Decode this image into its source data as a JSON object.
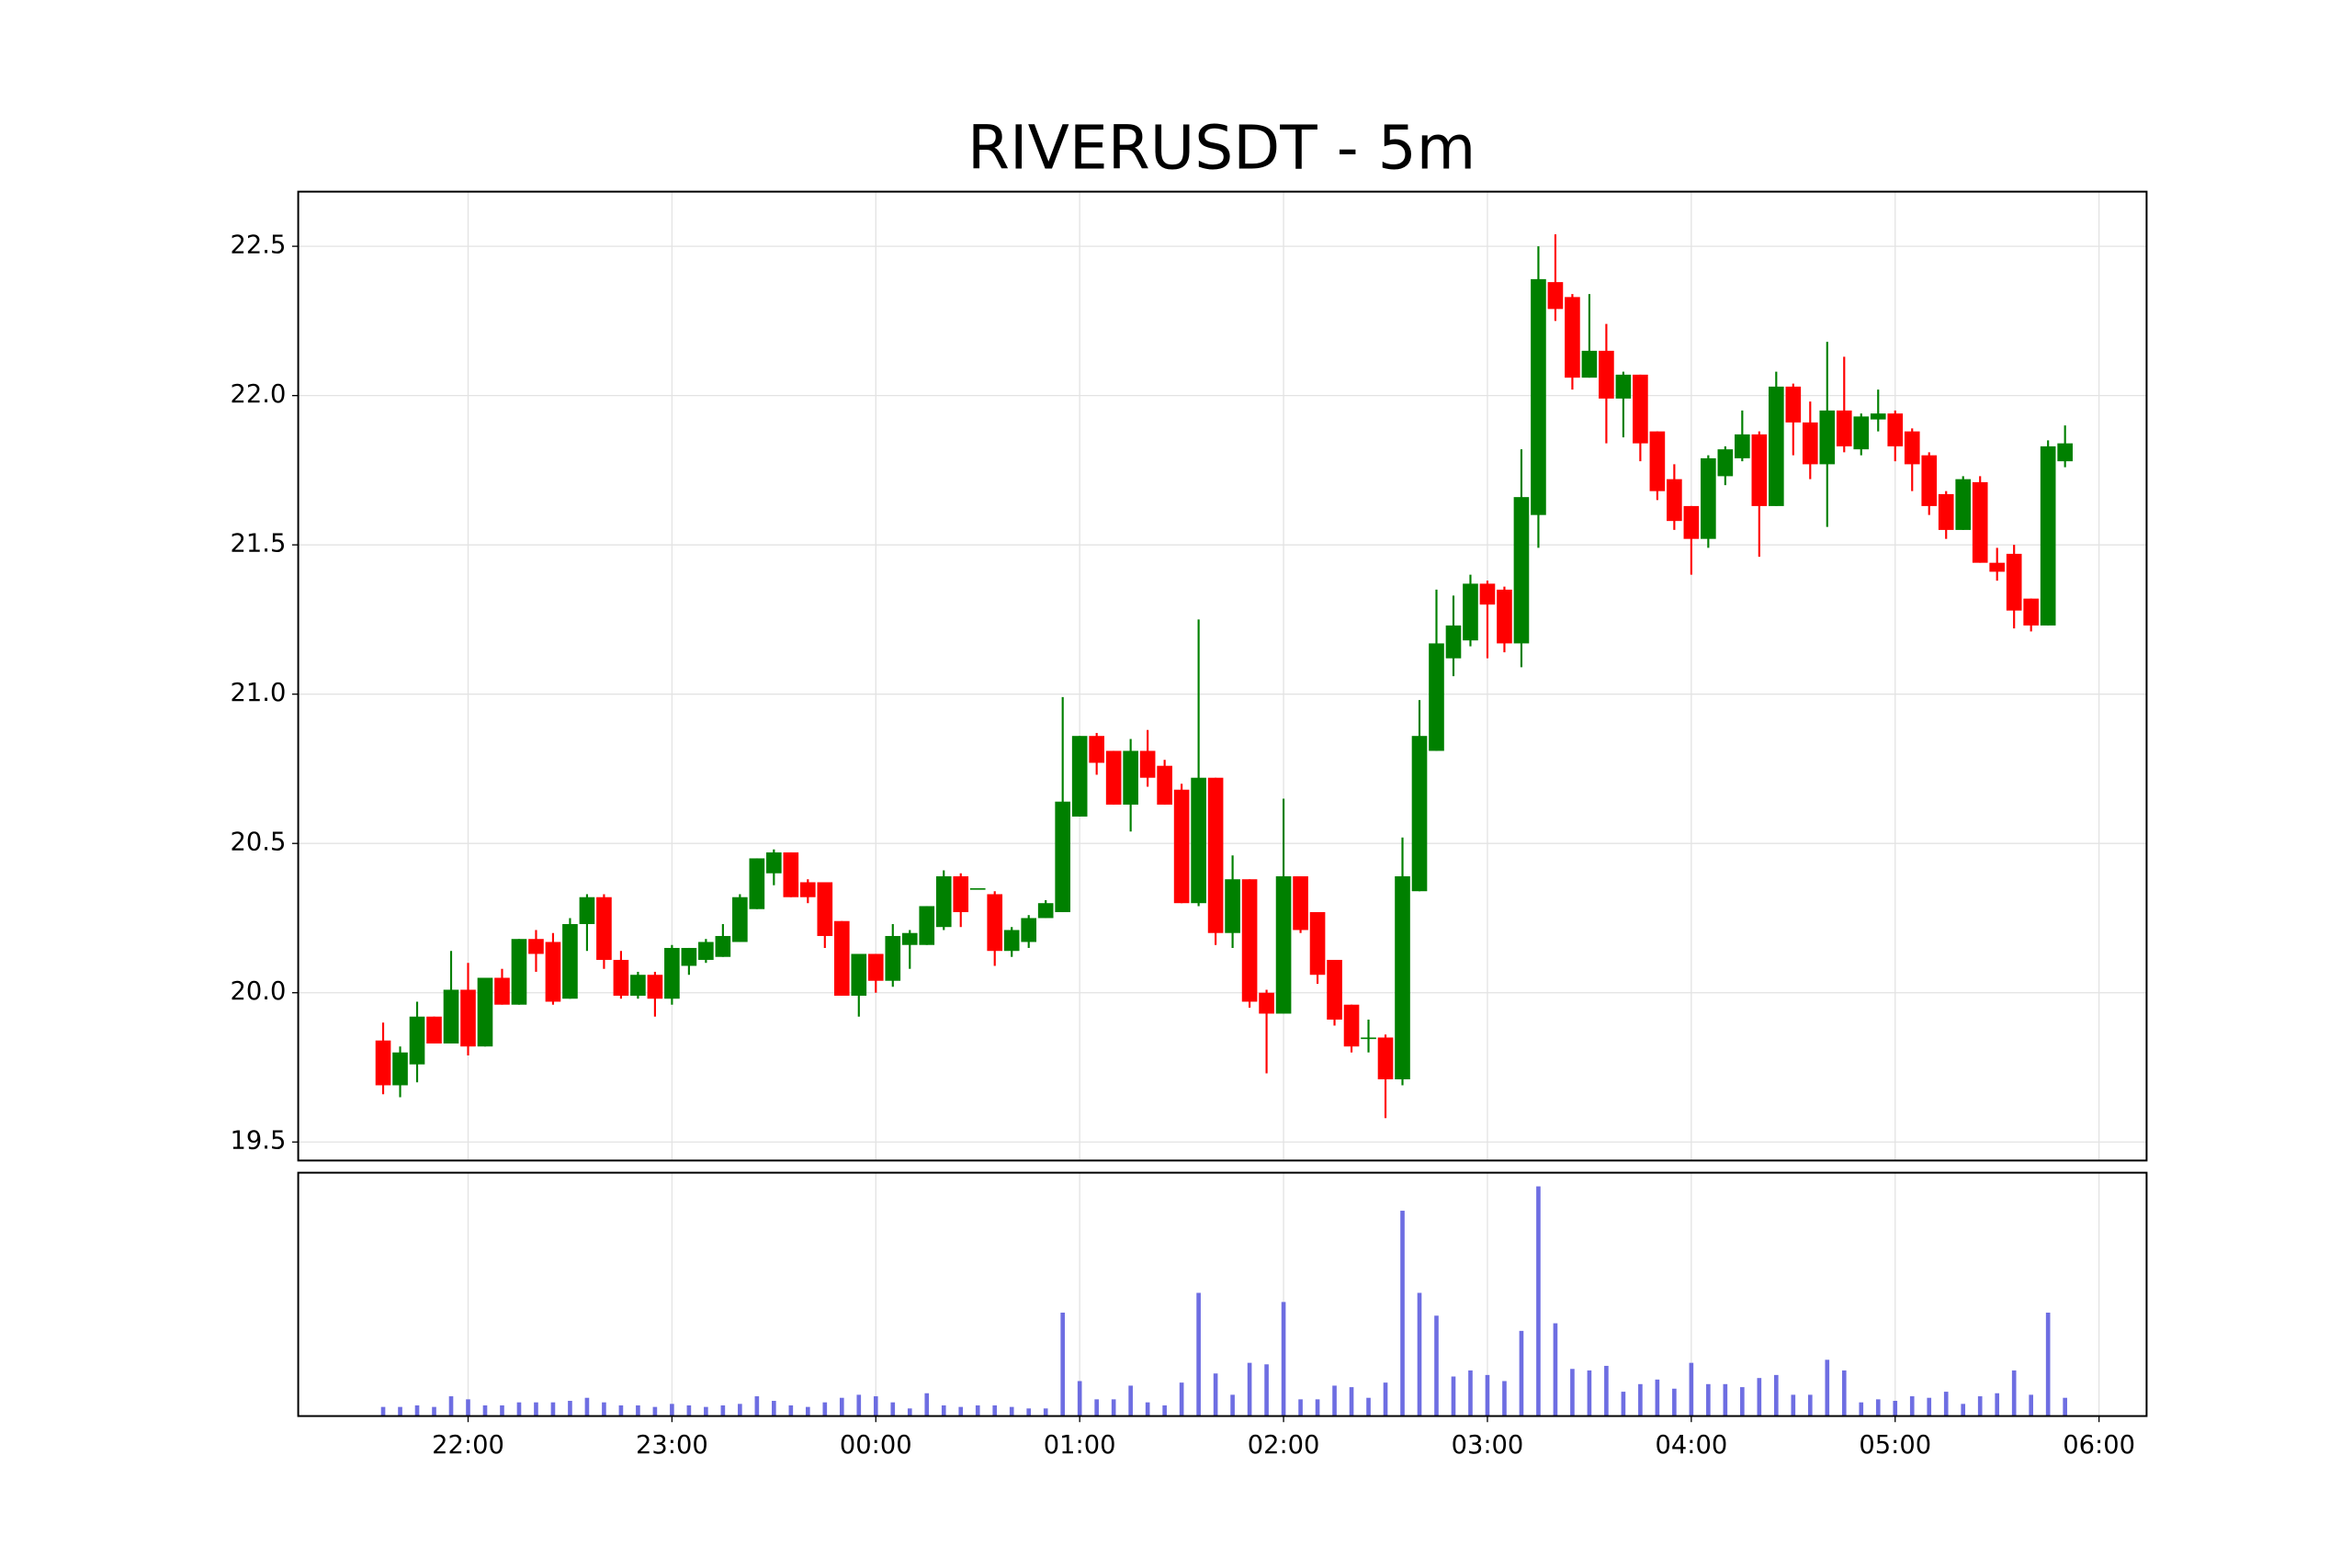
{
  "chart_data": {
    "type": "candlestick",
    "title": "RIVERUSDT - 5m",
    "x": [
      "21:35",
      "21:40",
      "21:45",
      "21:50",
      "21:55",
      "22:00",
      "22:05",
      "22:10",
      "22:15",
      "22:20",
      "22:25",
      "22:30",
      "22:35",
      "22:40",
      "22:45",
      "22:50",
      "22:55",
      "23:00",
      "23:05",
      "23:10",
      "23:15",
      "23:20",
      "23:25",
      "23:30",
      "23:35",
      "23:40",
      "23:45",
      "23:50",
      "23:55",
      "00:00",
      "00:05",
      "00:10",
      "00:15",
      "00:20",
      "00:25",
      "00:30",
      "00:35",
      "00:40",
      "00:45",
      "00:50",
      "00:55",
      "01:00",
      "01:05",
      "01:10",
      "01:15",
      "01:20",
      "01:25",
      "01:30",
      "01:35",
      "01:40",
      "01:45",
      "01:50",
      "01:55",
      "02:00",
      "02:05",
      "02:10",
      "02:15",
      "02:20",
      "02:25",
      "02:30",
      "02:35",
      "02:40",
      "02:45",
      "02:50",
      "02:55",
      "03:00",
      "03:05",
      "03:10",
      "03:15",
      "03:20",
      "03:25",
      "03:30",
      "03:35",
      "03:40",
      "03:45",
      "03:50",
      "03:55",
      "04:00",
      "04:05",
      "04:10",
      "04:15",
      "04:20",
      "04:25",
      "04:30",
      "04:35",
      "04:40",
      "04:45",
      "04:50",
      "04:55",
      "05:00",
      "05:05",
      "05:10",
      "05:15",
      "05:20",
      "05:25",
      "05:30",
      "05:35",
      "05:40",
      "05:45",
      "05:50"
    ],
    "open": [
      19.84,
      19.69,
      19.76,
      19.92,
      19.83,
      20.01,
      19.82,
      20.05,
      19.96,
      20.18,
      20.17,
      19.98,
      20.23,
      20.32,
      20.11,
      19.99,
      20.06,
      19.98,
      20.09,
      20.11,
      20.12,
      20.17,
      20.28,
      20.4,
      20.47,
      20.37,
      20.37,
      20.24,
      19.99,
      20.13,
      20.04,
      20.16,
      20.16,
      20.22,
      20.39,
      20.35,
      20.33,
      20.14,
      20.17,
      20.25,
      20.27,
      20.59,
      20.86,
      20.81,
      20.63,
      20.81,
      20.76,
      20.68,
      20.3,
      20.72,
      20.2,
      20.38,
      20.0,
      19.93,
      20.39,
      20.27,
      20.11,
      19.96,
      19.85,
      19.85,
      19.71,
      20.34,
      20.81,
      21.12,
      21.18,
      21.37,
      21.35,
      21.17,
      21.6,
      22.38,
      22.33,
      22.06,
      22.15,
      21.99,
      22.07,
      21.88,
      21.72,
      21.63,
      21.52,
      21.73,
      21.79,
      21.87,
      21.63,
      22.03,
      21.91,
      21.77,
      21.95,
      21.82,
      21.92,
      21.94,
      21.88,
      21.8,
      21.67,
      21.55,
      21.71,
      21.44,
      21.47,
      21.32,
      21.23,
      21.78
    ],
    "high": [
      19.9,
      19.82,
      19.97,
      19.92,
      20.14,
      20.1,
      20.05,
      20.08,
      20.18,
      20.21,
      20.2,
      20.25,
      20.33,
      20.33,
      20.14,
      20.07,
      20.07,
      20.16,
      20.15,
      20.18,
      20.23,
      20.33,
      20.45,
      20.48,
      20.47,
      20.38,
      20.37,
      20.24,
      20.13,
      20.13,
      20.23,
      20.21,
      20.29,
      20.41,
      20.4,
      20.35,
      20.34,
      20.22,
      20.26,
      20.31,
      20.99,
      20.86,
      20.87,
      20.81,
      20.85,
      20.88,
      20.78,
      20.7,
      21.25,
      20.72,
      20.46,
      20.38,
      20.01,
      20.65,
      20.39,
      20.27,
      20.11,
      19.96,
      19.91,
      19.86,
      20.52,
      20.98,
      21.35,
      21.33,
      21.4,
      21.38,
      21.36,
      21.82,
      22.5,
      22.54,
      22.34,
      22.34,
      22.24,
      22.08,
      22.07,
      21.88,
      21.77,
      21.63,
      21.8,
      21.83,
      21.95,
      21.88,
      22.08,
      22.04,
      21.98,
      22.18,
      22.13,
      21.94,
      22.02,
      21.95,
      21.89,
      21.81,
      21.68,
      21.73,
      21.73,
      21.49,
      21.5,
      21.32,
      21.85,
      21.9
    ],
    "low": [
      19.66,
      19.65,
      19.7,
      19.83,
      19.83,
      19.79,
      19.82,
      19.96,
      19.96,
      20.07,
      19.96,
      19.98,
      20.14,
      20.08,
      19.98,
      19.98,
      19.92,
      19.96,
      20.06,
      20.1,
      20.12,
      20.17,
      20.28,
      20.36,
      20.32,
      20.3,
      20.15,
      19.99,
      19.92,
      20.0,
      20.02,
      20.08,
      20.16,
      20.21,
      20.22,
      20.35,
      20.09,
      20.12,
      20.15,
      20.25,
      20.27,
      20.59,
      20.73,
      20.63,
      20.54,
      20.69,
      20.63,
      20.3,
      20.29,
      20.16,
      20.15,
      19.95,
      19.73,
      19.93,
      20.2,
      20.03,
      19.89,
      19.8,
      19.8,
      19.58,
      19.69,
      20.34,
      20.81,
      21.06,
      21.16,
      21.12,
      21.14,
      21.09,
      21.49,
      22.25,
      22.02,
      22.06,
      21.84,
      21.86,
      21.78,
      21.65,
      21.55,
      21.4,
      21.49,
      21.7,
      21.78,
      21.46,
      21.63,
      21.8,
      21.72,
      21.56,
      21.81,
      21.8,
      21.88,
      21.78,
      21.68,
      21.6,
      21.52,
      21.55,
      21.44,
      21.38,
      21.22,
      21.21,
      21.23,
      21.76
    ],
    "close": [
      19.69,
      19.8,
      19.92,
      19.83,
      20.01,
      19.82,
      20.05,
      19.96,
      20.18,
      20.13,
      19.97,
      20.23,
      20.32,
      20.11,
      19.99,
      20.06,
      19.98,
      20.15,
      20.15,
      20.17,
      20.19,
      20.32,
      20.45,
      20.47,
      20.32,
      20.32,
      20.19,
      19.99,
      20.13,
      20.04,
      20.19,
      20.2,
      20.29,
      20.39,
      20.27,
      20.35,
      20.14,
      20.21,
      20.25,
      20.3,
      20.64,
      20.86,
      20.77,
      20.63,
      20.81,
      20.72,
      20.63,
      20.3,
      20.72,
      20.2,
      20.38,
      19.97,
      19.93,
      20.39,
      20.21,
      20.06,
      19.91,
      19.82,
      19.85,
      19.71,
      20.39,
      20.86,
      21.17,
      21.23,
      21.37,
      21.3,
      21.17,
      21.66,
      22.39,
      22.29,
      22.06,
      22.15,
      21.99,
      22.07,
      21.84,
      21.68,
      21.58,
      21.52,
      21.79,
      21.82,
      21.87,
      21.63,
      22.03,
      21.91,
      21.77,
      21.95,
      21.83,
      21.93,
      21.94,
      21.83,
      21.77,
      21.63,
      21.55,
      21.72,
      21.44,
      21.41,
      21.28,
      21.23,
      21.83,
      21.84
    ],
    "volume": [
      6,
      6,
      7,
      6,
      13,
      11,
      7,
      7,
      9,
      9,
      9,
      10,
      12,
      9,
      7,
      7,
      6,
      8,
      7,
      6,
      7,
      8,
      13,
      10,
      7,
      6,
      9,
      12,
      14,
      13,
      9,
      5,
      15,
      7,
      6,
      7,
      7,
      6,
      5,
      5,
      68,
      23,
      11,
      11,
      20,
      9,
      7,
      22,
      81,
      28,
      14,
      35,
      34,
      75,
      11,
      11,
      20,
      19,
      12,
      22,
      135,
      81,
      66,
      26,
      30,
      27,
      23,
      56,
      151,
      61,
      31,
      30,
      33,
      16,
      21,
      24,
      18,
      35,
      21,
      21,
      19,
      25,
      27,
      14,
      14,
      37,
      30,
      9,
      11,
      10,
      13,
      12,
      16,
      8,
      13,
      15,
      30,
      14,
      68,
      12
    ],
    "up_color": "#008000",
    "down_color": "#ff0000",
    "volume_color": "#5555dd",
    "xlim": [
      -5,
      103.8
    ],
    "xticks": [
      {
        "value": 5,
        "label": "22:00"
      },
      {
        "value": 17,
        "label": "23:00"
      },
      {
        "value": 29,
        "label": "00:00"
      },
      {
        "value": 41,
        "label": "01:00"
      },
      {
        "value": 53,
        "label": "02:00"
      },
      {
        "value": 65,
        "label": "03:00"
      },
      {
        "value": 77,
        "label": "04:00"
      },
      {
        "value": 89,
        "label": "05:00"
      },
      {
        "value": 101,
        "label": "06:00"
      }
    ],
    "ylim": [
      19.438,
      22.683
    ],
    "yticks": [
      19.5,
      {
        "value": 20,
        "label": "20.0"
      },
      20.5,
      {
        "value": 21,
        "label": "21.0"
      },
      21.5,
      {
        "value": 22,
        "label": "22.0"
      },
      22.5
    ],
    "volume_ylim": [
      0,
      160
    ],
    "grid": true
  }
}
